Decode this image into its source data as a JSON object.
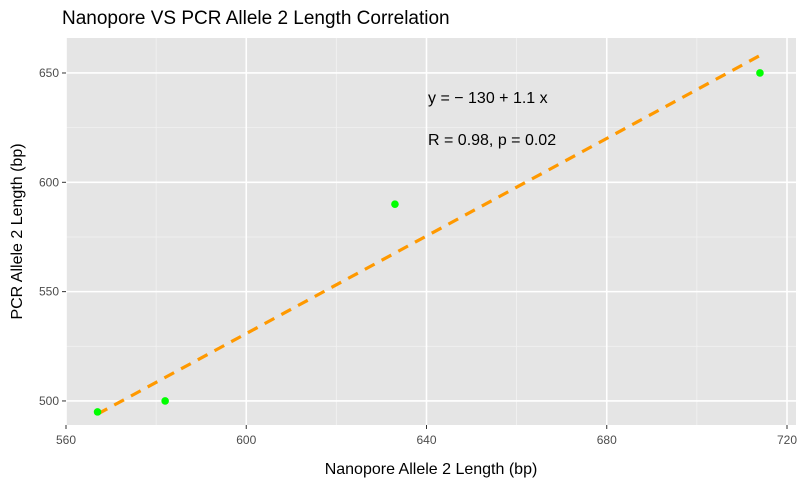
{
  "chart_data": {
    "type": "scatter",
    "title": "Nanopore VS PCR Allele 2 Length Correlation",
    "xlabel": "Nanopore Allele 2 Length (bp)",
    "ylabel": "PCR Allele 2 Length (bp)",
    "xlim": [
      560,
      722
    ],
    "ylim": [
      489,
      666
    ],
    "xticks": [
      560,
      600,
      640,
      680,
      720
    ],
    "yticks": [
      500,
      550,
      600,
      650
    ],
    "x": [
      567,
      582,
      633,
      714
    ],
    "y": [
      495,
      500,
      590,
      650
    ],
    "point_color": "#00ff00",
    "fit_line": {
      "x": [
        567,
        714
      ],
      "y": [
        494,
        658
      ],
      "color": "#ff9900",
      "style": "dashed"
    },
    "annotations": [
      "y = − 130 + 1.1 x",
      "R = 0.98, p = 0.02"
    ],
    "panel_background": "#e5e5e5",
    "grid": true
  }
}
